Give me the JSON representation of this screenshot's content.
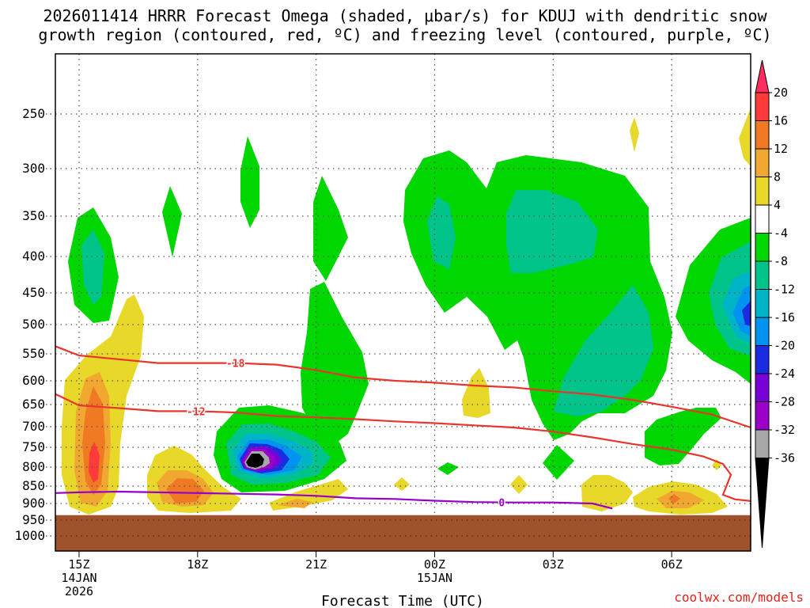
{
  "title": {
    "line1": "2026011414 HRRR Forecast Omega (shaded, μbar/s) for KDUJ with dendritic snow",
    "line2": "growth region (contoured, red, ºC) and freezing level (contoured, purple, ºC)"
  },
  "credit": "coolwx.com/models",
  "colors": {
    "red_contour": "#e8352e",
    "purple_contour": "#9600cc",
    "ground": "#a0522d",
    "grid": "#555555"
  },
  "chart_data": {
    "type": "heatmap",
    "title": "2026011414 HRRR Forecast Omega for KDUJ",
    "xlabel": "Forecast Time (UTC)",
    "ylabel": "",
    "xlim": [
      14.4,
      32.0
    ],
    "ylim_pressure_hpa": [
      1040,
      190
    ],
    "surface_pressure_hpa": 935,
    "x_ticks": [
      {
        "hour": 15,
        "label": "15Z",
        "sub1": "14JAN",
        "sub2": "2026"
      },
      {
        "hour": 18,
        "label": "18Z",
        "sub1": "",
        "sub2": ""
      },
      {
        "hour": 21,
        "label": "21Z",
        "sub1": "",
        "sub2": ""
      },
      {
        "hour": 24,
        "label": "00Z",
        "sub1": "15JAN",
        "sub2": ""
      },
      {
        "hour": 27,
        "label": "03Z",
        "sub1": "",
        "sub2": ""
      },
      {
        "hour": 30,
        "label": "06Z",
        "sub1": "",
        "sub2": ""
      }
    ],
    "y_ticks": [
      250,
      300,
      350,
      400,
      450,
      500,
      550,
      600,
      650,
      700,
      750,
      800,
      850,
      900,
      950,
      1000
    ],
    "colorbar": {
      "units": "μbar/s",
      "levels": [
        20,
        16,
        12,
        8,
        4,
        -4,
        -8,
        -12,
        -16,
        -20,
        -24,
        -28,
        -32,
        -36
      ],
      "colors": [
        "#ff2e5e",
        "#ff3a3a",
        "#ef7a23",
        "#f0a830",
        "#e8d829",
        "#ffffff",
        "#00d600",
        "#00c48a",
        "#00b4c8",
        "#0094f0",
        "#1b2be0",
        "#7a00d8",
        "#9a00c8",
        "#a8a8a8",
        "#000000"
      ]
    },
    "contours": [
      {
        "label": "-18",
        "variable": "temperature",
        "color": "red",
        "points": [
          [
            14.4,
            537
          ],
          [
            15,
            553
          ],
          [
            16,
            560
          ],
          [
            17,
            567
          ],
          [
            18,
            567
          ],
          [
            19,
            567
          ],
          [
            20,
            570
          ],
          [
            21,
            580
          ],
          [
            22,
            594
          ],
          [
            23,
            600
          ],
          [
            24,
            604
          ],
          [
            25,
            610
          ],
          [
            26,
            614
          ],
          [
            27,
            622
          ],
          [
            28,
            629
          ],
          [
            29,
            640
          ],
          [
            30,
            655
          ],
          [
            31,
            672
          ],
          [
            32,
            702
          ]
        ]
      },
      {
        "label": "-12",
        "variable": "temperature",
        "color": "red",
        "points": [
          [
            14.4,
            628
          ],
          [
            15,
            652
          ],
          [
            16,
            658
          ],
          [
            17,
            665
          ],
          [
            18,
            665
          ],
          [
            19,
            668
          ],
          [
            20,
            676
          ],
          [
            21,
            679
          ],
          [
            22,
            683
          ],
          [
            23,
            688
          ],
          [
            24,
            692
          ],
          [
            25,
            697
          ],
          [
            26,
            702
          ],
          [
            27,
            712
          ],
          [
            28,
            726
          ],
          [
            29,
            742
          ],
          [
            30,
            756
          ],
          [
            30.8,
            773
          ],
          [
            31.3,
            792
          ],
          [
            31.5,
            820
          ],
          [
            31.3,
            875
          ],
          [
            31.6,
            888
          ],
          [
            32,
            893
          ]
        ]
      },
      {
        "label": "0",
        "variable": "freezing level",
        "color": "purple",
        "points": [
          [
            14.4,
            870
          ],
          [
            15,
            868
          ],
          [
            16,
            866
          ],
          [
            17,
            868
          ],
          [
            18,
            870
          ],
          [
            19,
            872
          ],
          [
            20,
            874
          ],
          [
            21,
            878
          ],
          [
            22,
            885
          ],
          [
            23,
            887
          ],
          [
            24,
            892
          ],
          [
            25,
            896
          ],
          [
            26,
            897
          ],
          [
            27,
            897
          ],
          [
            28,
            900
          ],
          [
            28.5,
            915
          ]
        ]
      }
    ],
    "omega_features": [
      {
        "center_hour": 19.1,
        "center_hpa": 765,
        "min_value": -36,
        "note": "strong upward motion core"
      },
      {
        "center_hour": 31.8,
        "center_hpa": 470,
        "min_value": -20,
        "note": "upward motion at edge"
      },
      {
        "center_hour": 15.0,
        "center_hpa": 790,
        "max_value": 16,
        "note": "downward motion column"
      },
      {
        "center_hour": 24.8,
        "center_hpa": 550,
        "min_value": -12,
        "note": "broad ascent region"
      }
    ]
  }
}
